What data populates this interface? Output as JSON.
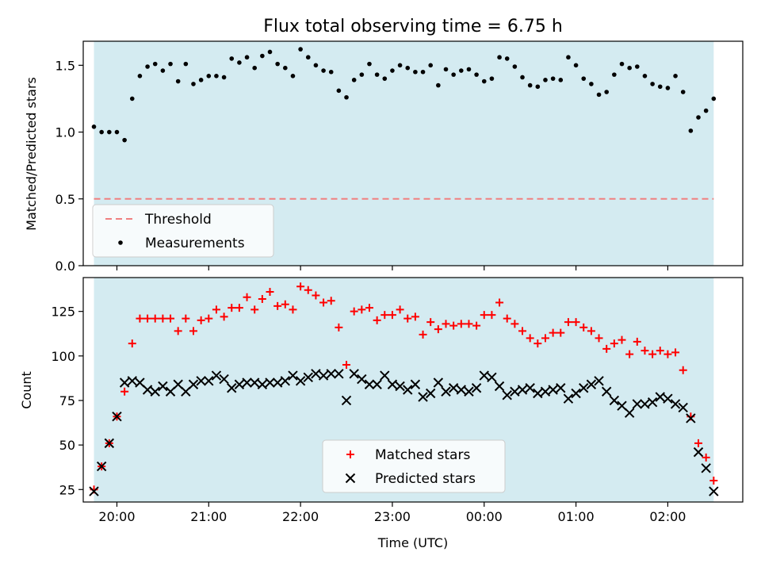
{
  "chart_data": [
    {
      "type": "scatter",
      "title": "Flux total observing time = 6.75 h",
      "ylabel": "Matched/Predicted stars",
      "xlabel": "",
      "ylim": [
        0,
        1.68
      ],
      "yticks": [
        "0.0",
        "0.5",
        "1.0",
        "1.5"
      ],
      "ytick_values": [
        0,
        0.5,
        1.0,
        1.5
      ],
      "shaded_color": "#d4ebf1",
      "series": [
        {
          "name": "Measurements",
          "marker": "dot",
          "color": "#000000",
          "x": [
            "19:45",
            "19:50",
            "19:55",
            "20:00",
            "20:05",
            "20:10",
            "20:15",
            "20:20",
            "20:25",
            "20:30",
            "20:35",
            "20:40",
            "20:45",
            "20:50",
            "20:55",
            "21:00",
            "21:05",
            "21:10",
            "21:15",
            "21:20",
            "21:25",
            "21:30",
            "21:35",
            "21:40",
            "21:45",
            "21:50",
            "21:55",
            "22:00",
            "22:05",
            "22:10",
            "22:15",
            "22:20",
            "22:25",
            "22:30",
            "22:35",
            "22:40",
            "22:45",
            "22:50",
            "22:55",
            "23:00",
            "23:05",
            "23:10",
            "23:15",
            "23:20",
            "23:25",
            "23:30",
            "23:35",
            "23:40",
            "23:45",
            "23:50",
            "23:55",
            "00:00",
            "00:05",
            "00:10",
            "00:15",
            "00:20",
            "00:25",
            "00:30",
            "00:35",
            "00:40",
            "00:45",
            "00:50",
            "00:55",
            "01:00",
            "01:05",
            "01:10",
            "01:15",
            "01:20",
            "01:25",
            "01:30",
            "01:35",
            "01:40",
            "01:45",
            "01:50",
            "01:55",
            "02:00",
            "02:05",
            "02:10",
            "02:15",
            "02:20",
            "02:25",
            "02:30"
          ],
          "y": [
            1.04,
            1.0,
            1.0,
            1.0,
            0.94,
            1.25,
            1.42,
            1.49,
            1.51,
            1.46,
            1.51,
            1.38,
            1.51,
            1.36,
            1.39,
            1.42,
            1.42,
            1.41,
            1.55,
            1.52,
            1.56,
            1.48,
            1.57,
            1.6,
            1.51,
            1.48,
            1.42,
            1.62,
            1.56,
            1.5,
            1.46,
            1.45,
            1.31,
            1.26,
            1.39,
            1.43,
            1.51,
            1.43,
            1.4,
            1.46,
            1.5,
            1.48,
            1.45,
            1.45,
            1.5,
            1.35,
            1.47,
            1.43,
            1.46,
            1.47,
            1.43,
            1.38,
            1.4,
            1.56,
            1.55,
            1.49,
            1.41,
            1.35,
            1.34,
            1.39,
            1.4,
            1.39,
            1.56,
            1.5,
            1.4,
            1.36,
            1.28,
            1.3,
            1.43,
            1.51,
            1.48,
            1.49,
            1.42,
            1.36,
            1.34,
            1.33,
            1.42,
            1.3,
            1.01,
            1.11,
            1.16,
            1.25
          ]
        },
        {
          "name": "Threshold",
          "marker": "dashed-line",
          "color": "#f08080",
          "y_const": 0.5
        }
      ],
      "legend_placement": "lower-left"
    },
    {
      "type": "scatter",
      "title": "",
      "ylabel": "Count",
      "xlabel": "Time (UTC)",
      "ylim": [
        18,
        144
      ],
      "yticks": [
        "25",
        "50",
        "75",
        "100",
        "125"
      ],
      "ytick_values": [
        25,
        50,
        75,
        100,
        125
      ],
      "xticks": [
        "20:00",
        "21:00",
        "22:00",
        "23:00",
        "00:00",
        "01:00",
        "02:00"
      ],
      "shaded_color": "#d4ebf1",
      "series": [
        {
          "name": "Matched stars",
          "marker": "plus",
          "color": "#ff0000",
          "x": [
            "19:45",
            "19:50",
            "19:55",
            "20:00",
            "20:05",
            "20:10",
            "20:15",
            "20:20",
            "20:25",
            "20:30",
            "20:35",
            "20:40",
            "20:45",
            "20:50",
            "20:55",
            "21:00",
            "21:05",
            "21:10",
            "21:15",
            "21:20",
            "21:25",
            "21:30",
            "21:35",
            "21:40",
            "21:45",
            "21:50",
            "21:55",
            "22:00",
            "22:05",
            "22:10",
            "22:15",
            "22:20",
            "22:25",
            "22:30",
            "22:35",
            "22:40",
            "22:45",
            "22:50",
            "22:55",
            "23:00",
            "23:05",
            "23:10",
            "23:15",
            "23:20",
            "23:25",
            "23:30",
            "23:35",
            "23:40",
            "23:45",
            "23:50",
            "23:55",
            "00:00",
            "00:05",
            "00:10",
            "00:15",
            "00:20",
            "00:25",
            "00:30",
            "00:35",
            "00:40",
            "00:45",
            "00:50",
            "00:55",
            "01:00",
            "01:05",
            "01:10",
            "01:15",
            "01:20",
            "01:25",
            "01:30",
            "01:35",
            "01:40",
            "01:45",
            "01:50",
            "01:55",
            "02:00",
            "02:05",
            "02:10",
            "02:15",
            "02:20",
            "02:25",
            "02:30"
          ],
          "y": [
            25,
            38,
            51,
            66,
            80,
            107,
            121,
            121,
            121,
            121,
            121,
            114,
            121,
            114,
            120,
            121,
            126,
            122,
            127,
            127,
            133,
            126,
            132,
            136,
            128,
            129,
            126,
            139,
            137,
            134,
            130,
            131,
            116,
            95,
            125,
            126,
            127,
            120,
            123,
            123,
            126,
            121,
            122,
            112,
            119,
            115,
            118,
            117,
            118,
            118,
            117,
            123,
            123,
            130,
            121,
            118,
            114,
            110,
            107,
            110,
            113,
            113,
            119,
            119,
            116,
            114,
            110,
            104,
            107,
            109,
            101,
            108,
            103,
            101,
            103,
            101,
            102,
            92,
            66,
            51,
            43,
            30
          ]
        },
        {
          "name": "Predicted stars",
          "marker": "x",
          "color": "#000000",
          "x": [
            "19:45",
            "19:50",
            "19:55",
            "20:00",
            "20:05",
            "20:10",
            "20:15",
            "20:20",
            "20:25",
            "20:30",
            "20:35",
            "20:40",
            "20:45",
            "20:50",
            "20:55",
            "21:00",
            "21:05",
            "21:10",
            "21:15",
            "21:20",
            "21:25",
            "21:30",
            "21:35",
            "21:40",
            "21:45",
            "21:50",
            "21:55",
            "22:00",
            "22:05",
            "22:10",
            "22:15",
            "22:20",
            "22:25",
            "22:30",
            "22:35",
            "22:40",
            "22:45",
            "22:50",
            "22:55",
            "23:00",
            "23:05",
            "23:10",
            "23:15",
            "23:20",
            "23:25",
            "23:30",
            "23:35",
            "23:40",
            "23:45",
            "23:50",
            "23:55",
            "00:00",
            "00:05",
            "00:10",
            "00:15",
            "00:20",
            "00:25",
            "00:30",
            "00:35",
            "00:40",
            "00:45",
            "00:50",
            "00:55",
            "01:00",
            "01:05",
            "01:10",
            "01:15",
            "01:20",
            "01:25",
            "01:30",
            "01:35",
            "01:40",
            "01:45",
            "01:50",
            "01:55",
            "02:00",
            "02:05",
            "02:10",
            "02:15",
            "02:20",
            "02:25",
            "02:30"
          ],
          "y": [
            24,
            38,
            51,
            66,
            85,
            86,
            85,
            81,
            80,
            83,
            80,
            84,
            80,
            84,
            86,
            86,
            89,
            87,
            82,
            84,
            85,
            85,
            84,
            85,
            85,
            86,
            89,
            86,
            88,
            90,
            89,
            90,
            90,
            75,
            90,
            87,
            84,
            84,
            89,
            84,
            83,
            81,
            84,
            77,
            79,
            85,
            80,
            82,
            81,
            80,
            82,
            89,
            88,
            83,
            78,
            80,
            81,
            82,
            79,
            80,
            81,
            82,
            76,
            79,
            82,
            84,
            86,
            80,
            75,
            72,
            68,
            73,
            73,
            74,
            77,
            76,
            73,
            71,
            65,
            46,
            37,
            24
          ]
        }
      ],
      "legend_placement": "lower-center"
    }
  ]
}
